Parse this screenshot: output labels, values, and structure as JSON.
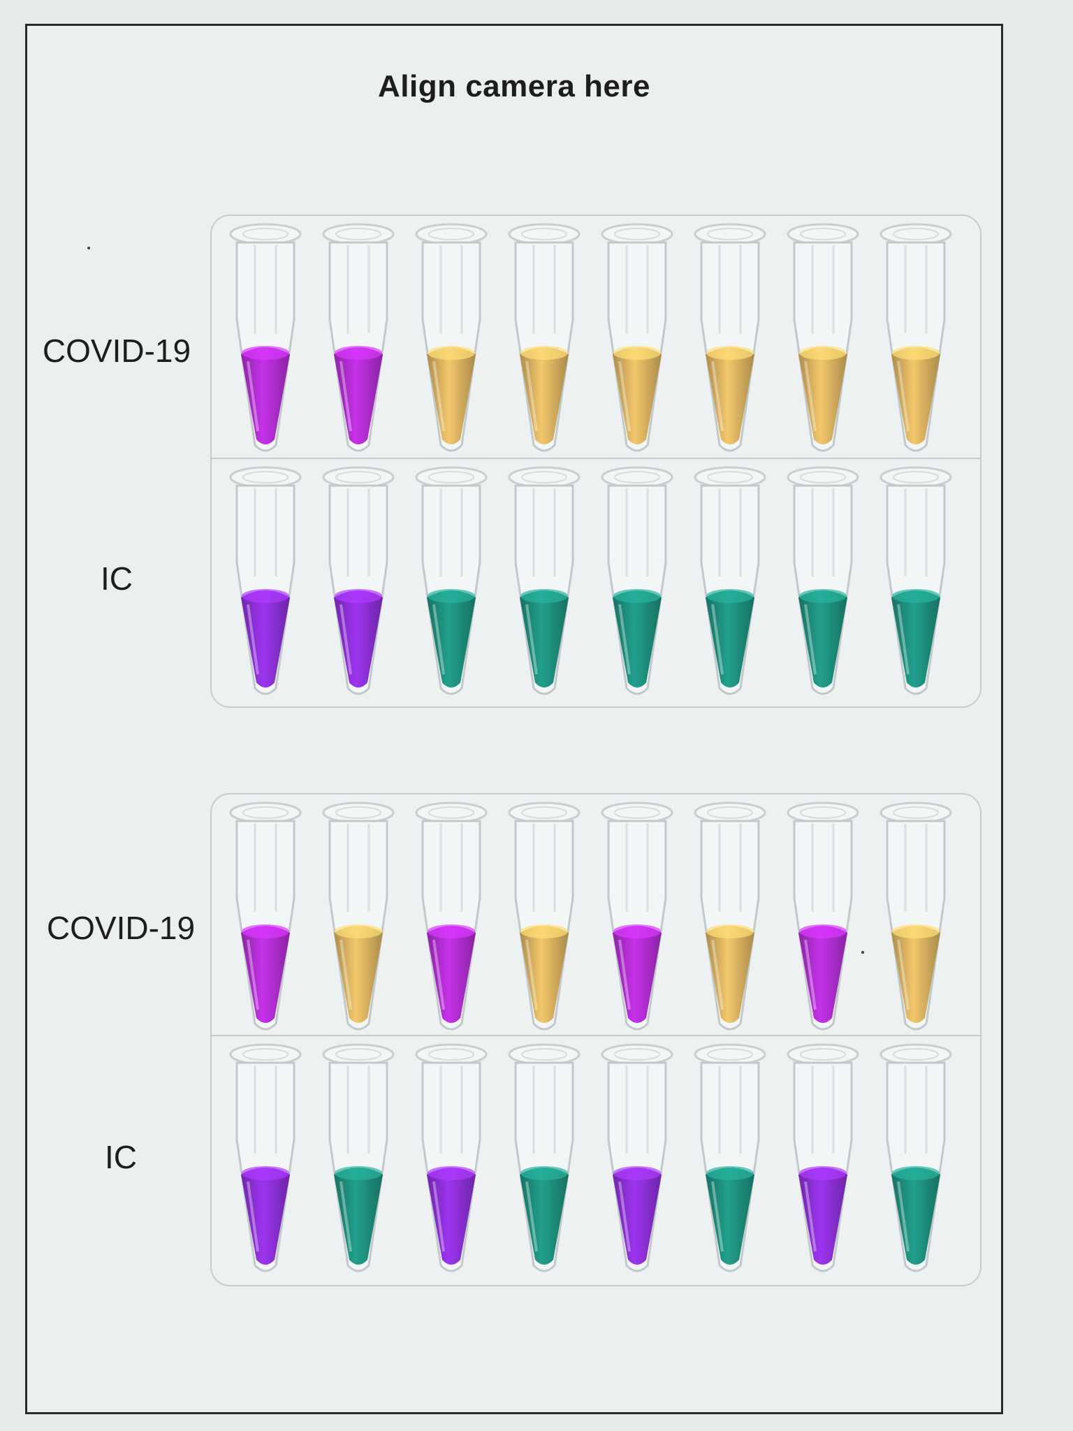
{
  "title": "Align camera here",
  "labels": {
    "covid": "COVID-19",
    "ic": "IC"
  },
  "colors": {
    "purple": "#b02dd0",
    "yellow": "#d9b260",
    "green": "#1e8f7e",
    "violet": "#8c2fd6"
  },
  "panels": [
    {
      "rows": [
        {
          "label": "COVID-19",
          "tubes": [
            "purple",
            "purple",
            "yellow",
            "yellow",
            "yellow",
            "yellow",
            "yellow",
            "yellow"
          ]
        },
        {
          "label": "IC",
          "tubes": [
            "violet",
            "violet",
            "green",
            "green",
            "green",
            "green",
            "green",
            "green"
          ]
        }
      ]
    },
    {
      "rows": [
        {
          "label": "COVID-19",
          "tubes": [
            "purple",
            "yellow",
            "purple",
            "yellow",
            "purple",
            "yellow",
            "purple",
            "yellow"
          ]
        },
        {
          "label": "IC",
          "tubes": [
            "violet",
            "green",
            "violet",
            "green",
            "violet",
            "green",
            "violet",
            "green"
          ]
        }
      ]
    }
  ]
}
